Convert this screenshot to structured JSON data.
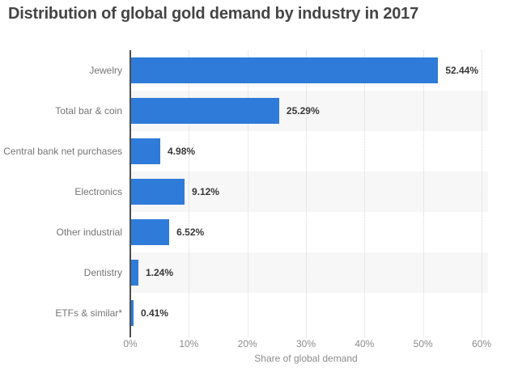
{
  "header": {
    "title": "Distribution of global gold demand by industry in 2017"
  },
  "chart_data": {
    "type": "bar",
    "orientation": "horizontal",
    "title": "Distribution of global gold demand by industry in 2017",
    "categories": [
      "Jewelry",
      "Total bar & coin",
      "Central bank net purchases",
      "Electronics",
      "Other industrial",
      "Dentistry",
      "ETFs & similar*"
    ],
    "values": [
      52.44,
      25.29,
      4.98,
      9.12,
      6.52,
      1.24,
      0.41
    ],
    "value_labels": [
      "52.44%",
      "25.29%",
      "4.98%",
      "9.12%",
      "6.52%",
      "1.24%",
      "0.41%"
    ],
    "xlabel": "Share of global demand",
    "ylabel": "",
    "xlim": [
      0,
      60
    ],
    "x_ticks": [
      "0%",
      "10%",
      "20%",
      "30%",
      "40%",
      "50%",
      "60%"
    ],
    "x_tick_values": [
      0,
      10,
      20,
      30,
      40,
      50,
      60
    ],
    "grid": "vertical-dotted",
    "legend_position": "none",
    "colors": {
      "bar": "#2f7bd9",
      "stripe": "#f7f7f7",
      "gridline": "#d6d6d6",
      "axis_line": "#4d4d4d",
      "title_text": "#454545",
      "category_text": "#757575",
      "value_text": "#383838",
      "tick_text": "#8c8c8c"
    },
    "striped_rows": "alternate-light-gray"
  }
}
